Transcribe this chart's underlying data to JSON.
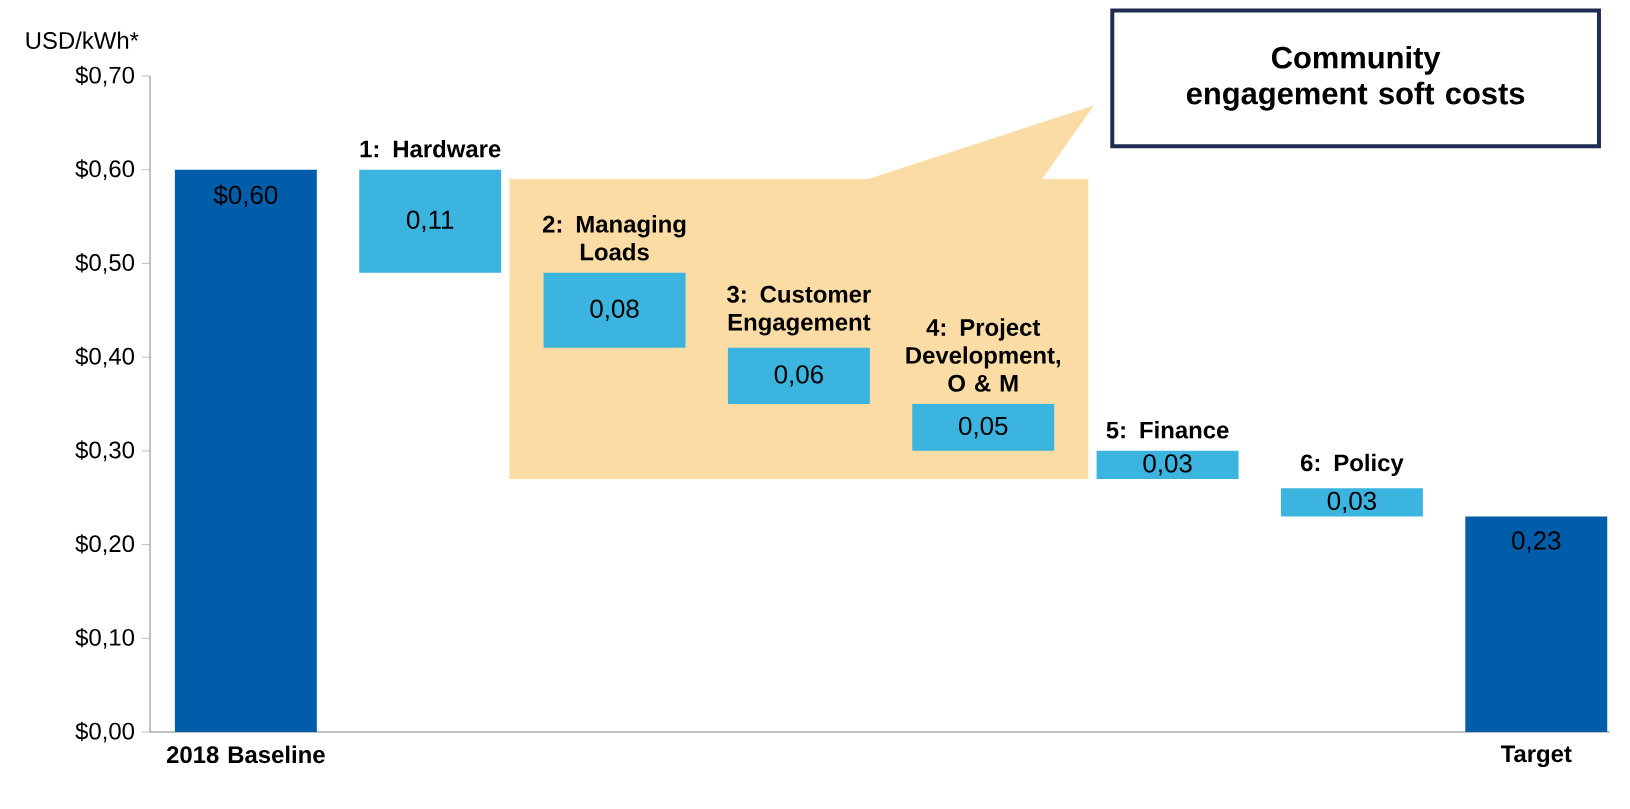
{
  "chart_data": {
    "type": "bar",
    "ylabel": "USD/kWh*",
    "categories": [
      "2018 Baseline",
      "1: Hardware",
      "2: Managing Loads",
      "3: Customer Engagement",
      "4: Project Development, O & M",
      "5: Finance",
      "6: Policy",
      "Target"
    ],
    "values": [
      0.6,
      0.11,
      0.08,
      0.06,
      0.05,
      0.03,
      0.03,
      0.23
    ],
    "base": [
      0,
      0.49,
      0.41,
      0.35,
      0.3,
      0.27,
      0.23,
      0
    ],
    "colors": [
      "#005daa",
      "#3bb4df",
      "#3bb4df",
      "#3bb4df",
      "#3bb4df",
      "#3bb4df",
      "#3bb4df",
      "#005daa"
    ],
    "value_labels": [
      "$0,60",
      "0,11",
      "0,08",
      "0,06",
      "0,05",
      "0,03",
      "0,03",
      "0,23"
    ],
    "ylim": [
      0,
      0.7
    ],
    "yticks": [
      {
        "value": 0,
        "label": "$0,00"
      },
      {
        "value": 0.1,
        "label": "$0,10"
      },
      {
        "value": 0.2,
        "label": "$0,20"
      },
      {
        "value": 0.3,
        "label": "$0,30"
      },
      {
        "value": 0.4,
        "label": "$0,40"
      },
      {
        "value": 0.5,
        "label": "$0,50"
      },
      {
        "value": 0.6,
        "label": "$0,60"
      },
      {
        "value": 0.7,
        "label": "$0,70"
      }
    ],
    "bands": [
      {
        "axis": "x",
        "from": "2: Managing Loads",
        "to": "4: Project Development, O & M",
        "color": "#fadca4"
      }
    ],
    "annotations": [
      "Community engagement soft costs"
    ]
  }
}
